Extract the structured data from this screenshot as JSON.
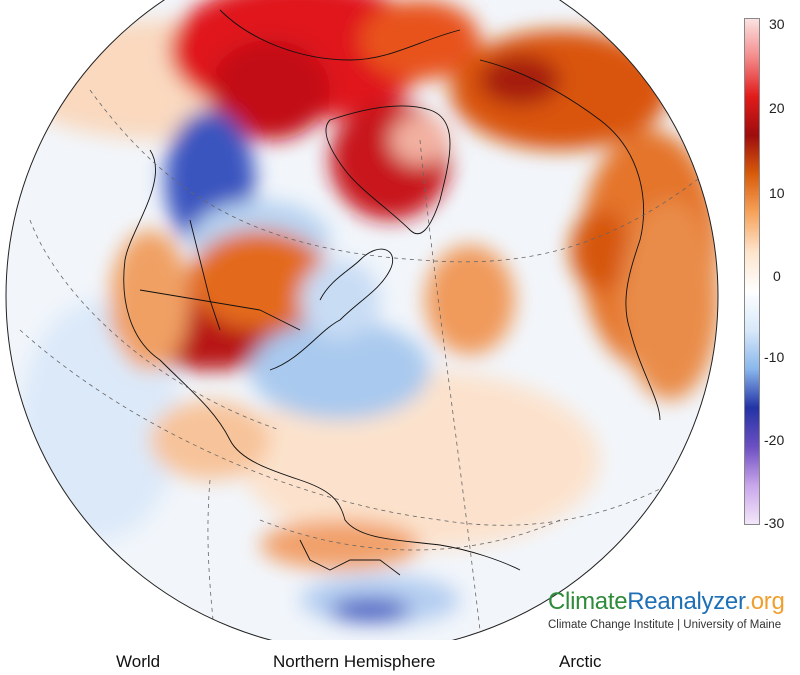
{
  "colorbar": {
    "ticks": [
      "30",
      "20",
      "10",
      "0",
      "-10",
      "-20",
      "-30"
    ],
    "colors": [
      "#fbe3e3",
      "#f48a8a",
      "#e21b1b",
      "#9e0d0d",
      "#d85c0b",
      "#f7a35c",
      "#fde4cc",
      "#ffffff",
      "#d8e9fa",
      "#8ab7ec",
      "#2333a6",
      "#6c4fc2",
      "#c9a6ea",
      "#f3e8fb"
    ]
  },
  "branding": {
    "part1": "Climate",
    "part2": "Reanalyzer",
    "part3": ".org",
    "subtitle": "Climate Change Institute | University of Maine"
  },
  "views": [
    "World",
    "Northern Hemisphere",
    "Arctic"
  ],
  "map": {
    "ocean_color": "#eef4fb",
    "warm_color": "#e86a1c",
    "hot_color": "#b50f0f",
    "cold_color": "#3651b8",
    "cool_color": "#aecdf0"
  }
}
